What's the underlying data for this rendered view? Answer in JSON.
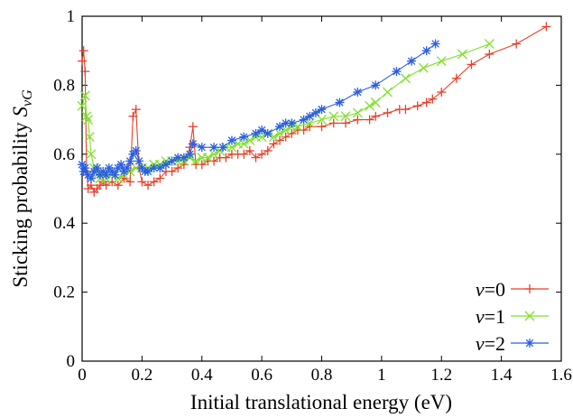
{
  "chart_data": {
    "type": "scatter",
    "title": "",
    "xlabel": "Initial translational energy (eV)",
    "ylabel_main": "Sticking probability ",
    "ylabel_symbol": "S",
    "ylabel_subscript": "vG",
    "xlim": [
      0,
      1.6
    ],
    "ylim": [
      0,
      1
    ],
    "xticks": [
      "0",
      "0.2",
      "0.4",
      "0.6",
      "0.8",
      "1",
      "1.2",
      "1.4",
      "1.6"
    ],
    "yticks": [
      "0",
      "0.2",
      "0.4",
      "0.6",
      "0.8",
      "1"
    ],
    "legend_position": "bottom-right",
    "grid": false,
    "series": [
      {
        "name_var": "v",
        "name_val": "=0",
        "color": "#e8402a",
        "marker": "plus",
        "points": [
          [
            0.0,
            0.87
          ],
          [
            0.005,
            0.9
          ],
          [
            0.01,
            0.84
          ],
          [
            0.015,
            0.55
          ],
          [
            0.02,
            0.5
          ],
          [
            0.03,
            0.51
          ],
          [
            0.04,
            0.49
          ],
          [
            0.05,
            0.5
          ],
          [
            0.06,
            0.51
          ],
          [
            0.07,
            0.52
          ],
          [
            0.08,
            0.51
          ],
          [
            0.1,
            0.52
          ],
          [
            0.12,
            0.51
          ],
          [
            0.14,
            0.53
          ],
          [
            0.16,
            0.52
          ],
          [
            0.17,
            0.71
          ],
          [
            0.18,
            0.73
          ],
          [
            0.19,
            0.56
          ],
          [
            0.2,
            0.52
          ],
          [
            0.22,
            0.51
          ],
          [
            0.24,
            0.52
          ],
          [
            0.26,
            0.53
          ],
          [
            0.28,
            0.55
          ],
          [
            0.3,
            0.55
          ],
          [
            0.32,
            0.56
          ],
          [
            0.34,
            0.57
          ],
          [
            0.36,
            0.62
          ],
          [
            0.37,
            0.68
          ],
          [
            0.38,
            0.57
          ],
          [
            0.4,
            0.57
          ],
          [
            0.42,
            0.58
          ],
          [
            0.44,
            0.58
          ],
          [
            0.46,
            0.59
          ],
          [
            0.48,
            0.59
          ],
          [
            0.5,
            0.6
          ],
          [
            0.52,
            0.6
          ],
          [
            0.54,
            0.6
          ],
          [
            0.56,
            0.61
          ],
          [
            0.58,
            0.59
          ],
          [
            0.6,
            0.6
          ],
          [
            0.62,
            0.61
          ],
          [
            0.64,
            0.63
          ],
          [
            0.66,
            0.64
          ],
          [
            0.68,
            0.65
          ],
          [
            0.7,
            0.66
          ],
          [
            0.72,
            0.67
          ],
          [
            0.74,
            0.67
          ],
          [
            0.76,
            0.68
          ],
          [
            0.8,
            0.68
          ],
          [
            0.84,
            0.69
          ],
          [
            0.88,
            0.69
          ],
          [
            0.92,
            0.7
          ],
          [
            0.96,
            0.7
          ],
          [
            0.98,
            0.71
          ],
          [
            1.02,
            0.72
          ],
          [
            1.06,
            0.73
          ],
          [
            1.08,
            0.73
          ],
          [
            1.12,
            0.74
          ],
          [
            1.15,
            0.75
          ],
          [
            1.17,
            0.76
          ],
          [
            1.2,
            0.78
          ],
          [
            1.25,
            0.82
          ],
          [
            1.3,
            0.86
          ],
          [
            1.36,
            0.89
          ],
          [
            1.45,
            0.92
          ],
          [
            1.55,
            0.97
          ]
        ]
      },
      {
        "name_var": "v",
        "name_val": "=1",
        "color": "#7ee02a",
        "marker": "x",
        "points": [
          [
            0.0,
            0.74
          ],
          [
            0.01,
            0.77
          ],
          [
            0.015,
            0.71
          ],
          [
            0.02,
            0.7
          ],
          [
            0.025,
            0.65
          ],
          [
            0.03,
            0.6
          ],
          [
            0.04,
            0.56
          ],
          [
            0.05,
            0.54
          ],
          [
            0.06,
            0.53
          ],
          [
            0.07,
            0.54
          ],
          [
            0.08,
            0.53
          ],
          [
            0.1,
            0.54
          ],
          [
            0.12,
            0.53
          ],
          [
            0.14,
            0.54
          ],
          [
            0.16,
            0.55
          ],
          [
            0.18,
            0.56
          ],
          [
            0.2,
            0.56
          ],
          [
            0.22,
            0.56
          ],
          [
            0.24,
            0.57
          ],
          [
            0.26,
            0.57
          ],
          [
            0.28,
            0.58
          ],
          [
            0.3,
            0.58
          ],
          [
            0.32,
            0.58
          ],
          [
            0.34,
            0.58
          ],
          [
            0.36,
            0.59
          ],
          [
            0.38,
            0.58
          ],
          [
            0.4,
            0.59
          ],
          [
            0.42,
            0.59
          ],
          [
            0.44,
            0.6
          ],
          [
            0.46,
            0.61
          ],
          [
            0.48,
            0.62
          ],
          [
            0.5,
            0.62
          ],
          [
            0.52,
            0.63
          ],
          [
            0.54,
            0.63
          ],
          [
            0.56,
            0.64
          ],
          [
            0.58,
            0.65
          ],
          [
            0.6,
            0.65
          ],
          [
            0.62,
            0.66
          ],
          [
            0.64,
            0.65
          ],
          [
            0.66,
            0.66
          ],
          [
            0.68,
            0.67
          ],
          [
            0.7,
            0.68
          ],
          [
            0.72,
            0.68
          ],
          [
            0.76,
            0.69
          ],
          [
            0.8,
            0.7
          ],
          [
            0.84,
            0.71
          ],
          [
            0.88,
            0.71
          ],
          [
            0.92,
            0.72
          ],
          [
            0.96,
            0.74
          ],
          [
            0.98,
            0.75
          ],
          [
            1.02,
            0.78
          ],
          [
            1.08,
            0.82
          ],
          [
            1.14,
            0.85
          ],
          [
            1.2,
            0.87
          ],
          [
            1.27,
            0.89
          ],
          [
            1.36,
            0.92
          ]
        ]
      },
      {
        "name_var": "v",
        "name_val": "=2",
        "color": "#2a5fe0",
        "marker": "star",
        "points": [
          [
            0.0,
            0.57
          ],
          [
            0.005,
            0.55
          ],
          [
            0.01,
            0.56
          ],
          [
            0.02,
            0.54
          ],
          [
            0.03,
            0.53
          ],
          [
            0.04,
            0.55
          ],
          [
            0.05,
            0.56
          ],
          [
            0.06,
            0.54
          ],
          [
            0.07,
            0.55
          ],
          [
            0.08,
            0.54
          ],
          [
            0.09,
            0.56
          ],
          [
            0.1,
            0.55
          ],
          [
            0.11,
            0.54
          ],
          [
            0.12,
            0.56
          ],
          [
            0.13,
            0.57
          ],
          [
            0.14,
            0.55
          ],
          [
            0.15,
            0.56
          ],
          [
            0.16,
            0.58
          ],
          [
            0.17,
            0.6
          ],
          [
            0.18,
            0.61
          ],
          [
            0.19,
            0.58
          ],
          [
            0.2,
            0.56
          ],
          [
            0.21,
            0.55
          ],
          [
            0.22,
            0.55
          ],
          [
            0.24,
            0.56
          ],
          [
            0.26,
            0.56
          ],
          [
            0.28,
            0.57
          ],
          [
            0.3,
            0.58
          ],
          [
            0.32,
            0.59
          ],
          [
            0.34,
            0.59
          ],
          [
            0.36,
            0.6
          ],
          [
            0.37,
            0.63
          ],
          [
            0.4,
            0.62
          ],
          [
            0.44,
            0.62
          ],
          [
            0.47,
            0.62
          ],
          [
            0.5,
            0.64
          ],
          [
            0.54,
            0.65
          ],
          [
            0.58,
            0.66
          ],
          [
            0.6,
            0.67
          ],
          [
            0.62,
            0.66
          ],
          [
            0.66,
            0.68
          ],
          [
            0.68,
            0.69
          ],
          [
            0.7,
            0.69
          ],
          [
            0.74,
            0.7
          ],
          [
            0.76,
            0.71
          ],
          [
            0.78,
            0.72
          ],
          [
            0.8,
            0.73
          ],
          [
            0.86,
            0.75
          ],
          [
            0.92,
            0.78
          ],
          [
            0.98,
            0.8
          ],
          [
            1.05,
            0.84
          ],
          [
            1.1,
            0.87
          ],
          [
            1.15,
            0.9
          ],
          [
            1.18,
            0.92
          ]
        ]
      }
    ]
  }
}
